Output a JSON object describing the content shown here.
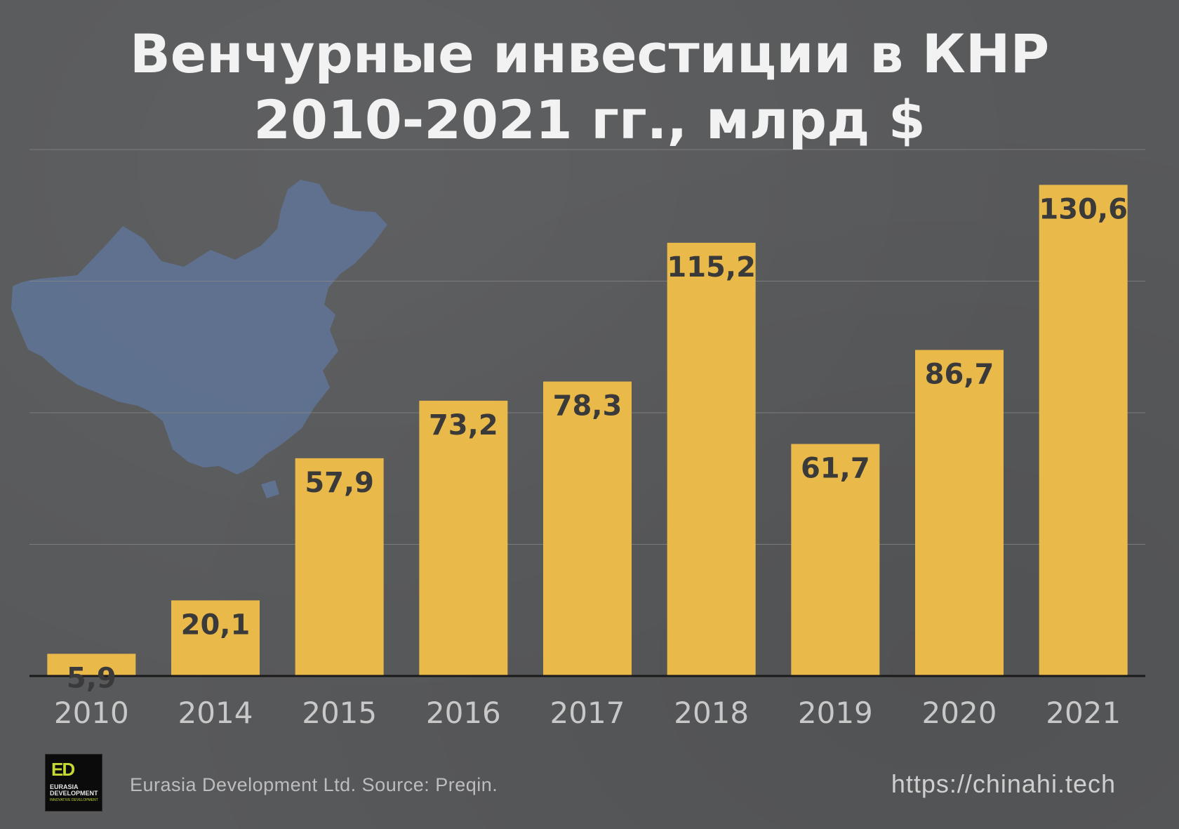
{
  "title": {
    "line1": "Венчурные инвестиции в КНР",
    "line2": "2010-2021 гг., млрд $"
  },
  "chart_data": {
    "type": "bar",
    "title": "Венчурные инвестиции в КНР 2010-2021 гг., млрд $",
    "categories": [
      "2010",
      "2014",
      "2015",
      "2016",
      "2017",
      "2018",
      "2019",
      "2020",
      "2021"
    ],
    "values": [
      5.9,
      20.1,
      57.9,
      73.2,
      78.3,
      115.2,
      61.7,
      86.7,
      130.6
    ],
    "value_labels": [
      "5,9",
      "20,1",
      "57,9",
      "73,2",
      "78,3",
      "115,2",
      "61,7",
      "86,7",
      "130,6"
    ],
    "xlabel": "",
    "ylabel": "",
    "ylim": [
      0,
      140
    ],
    "grid": true,
    "legend": "none"
  },
  "footer": {
    "credit": "Eurasia Development Ltd.  Source: Preqin.",
    "url": "https://chinahi.tech"
  },
  "logo": {
    "mark": "ED",
    "name_line1": "EURASIA",
    "name_line2": "DEVELOPMENT",
    "tagline": "INNOVATIVE DEVELOPMENT"
  },
  "colors": {
    "background": "#58595b",
    "bar": "#e9b94a",
    "value_label": "#3a3a3a",
    "tick_label": "#c8c8c8",
    "gridline": "#8a8a8a",
    "baseline": "#1a1a1a",
    "map": "#5f7290"
  }
}
